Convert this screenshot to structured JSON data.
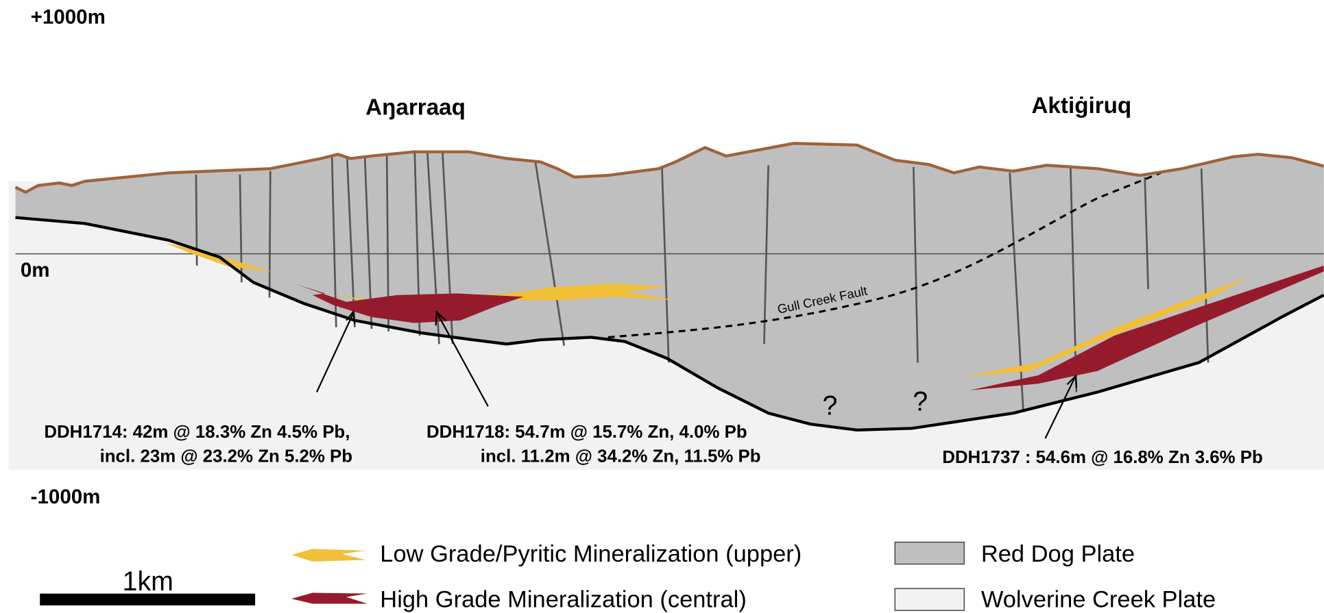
{
  "elevation_labels": {
    "top": "+1000m",
    "zero": "0m",
    "bottom": "-1000m"
  },
  "deposits": [
    "Aŋarraaq",
    "Aktiġiruq"
  ],
  "fault_label": "Gull Creek Fault",
  "unknown_markers": [
    "?",
    "?"
  ],
  "intercepts": [
    {
      "lines": [
        "DDH1714: 42m @ 18.3% Zn 4.5% Pb,",
        "incl. 23m @ 23.2% Zn 5.2% Pb"
      ]
    },
    {
      "lines": [
        "DDH1718: 54.7m @ 15.7% Zn,  4.0% Pb",
        "incl. 11.2m @ 34.2% Zn, 11.5% Pb"
      ]
    },
    {
      "lines": [
        "DDH1737 : 54.6m @ 16.8% Zn  3.6% Pb"
      ]
    }
  ],
  "legend": [
    "Low Grade/Pyritic Mineralization (upper)",
    "High Grade Mineralization (central)",
    "Red Dog Plate",
    "Wolverine Creek Plate"
  ],
  "scale_bar": "1km"
}
